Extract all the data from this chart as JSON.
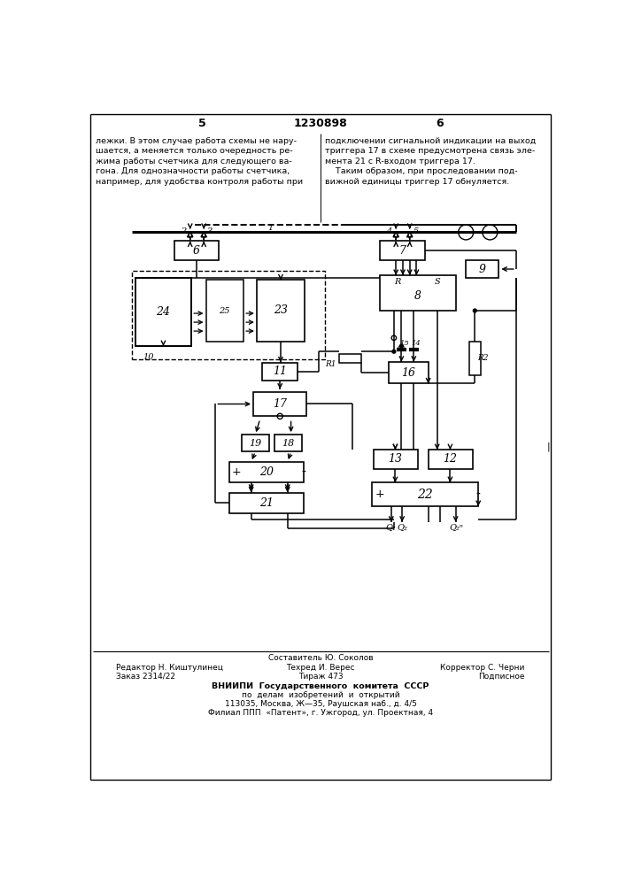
{
  "bg_color": "#ffffff",
  "title": "1230898",
  "page_left": "5",
  "page_right": "6",
  "left_text_lines": [
    "лежки. В этом случае работа схемы не нару-",
    "шается, а меняется только очередность ре-",
    "жима работы счетчика для следующего ва-",
    "гона. Для однозначности работы счетчика,",
    "например, для удобства контроля работы при"
  ],
  "right_text_lines": [
    "подключении сигнальной индикации на выход",
    "триггера 17 в схеме предусмотрена связь эле-",
    "мента 21 с R-входом триггера 17.",
    "    Таким образом, при проследовании под-",
    "вижной единицы триггер 17 обнуляется."
  ],
  "footer_composer": "Составитель Ю. Соколов",
  "footer_editor": "Редактор Н. Киштулинец",
  "footer_tech": "Техред И. Верес",
  "footer_corrector": "Корректор С. Черни",
  "footer_order": "Заказ 2314/22",
  "footer_print": "Тираж 473",
  "footer_sign": "Подписное",
  "footer_org1": "ВНИИПИ  Государственного  комитета  СССР",
  "footer_org2": "по  делам  изобретений  и  открытий",
  "footer_addr1": "113035, Москва, Ж—35, Раушская наб., д. 4/5",
  "footer_addr2": "Филиал ППП  «Патент», г. Ужгород, ул. Проектная, 4"
}
